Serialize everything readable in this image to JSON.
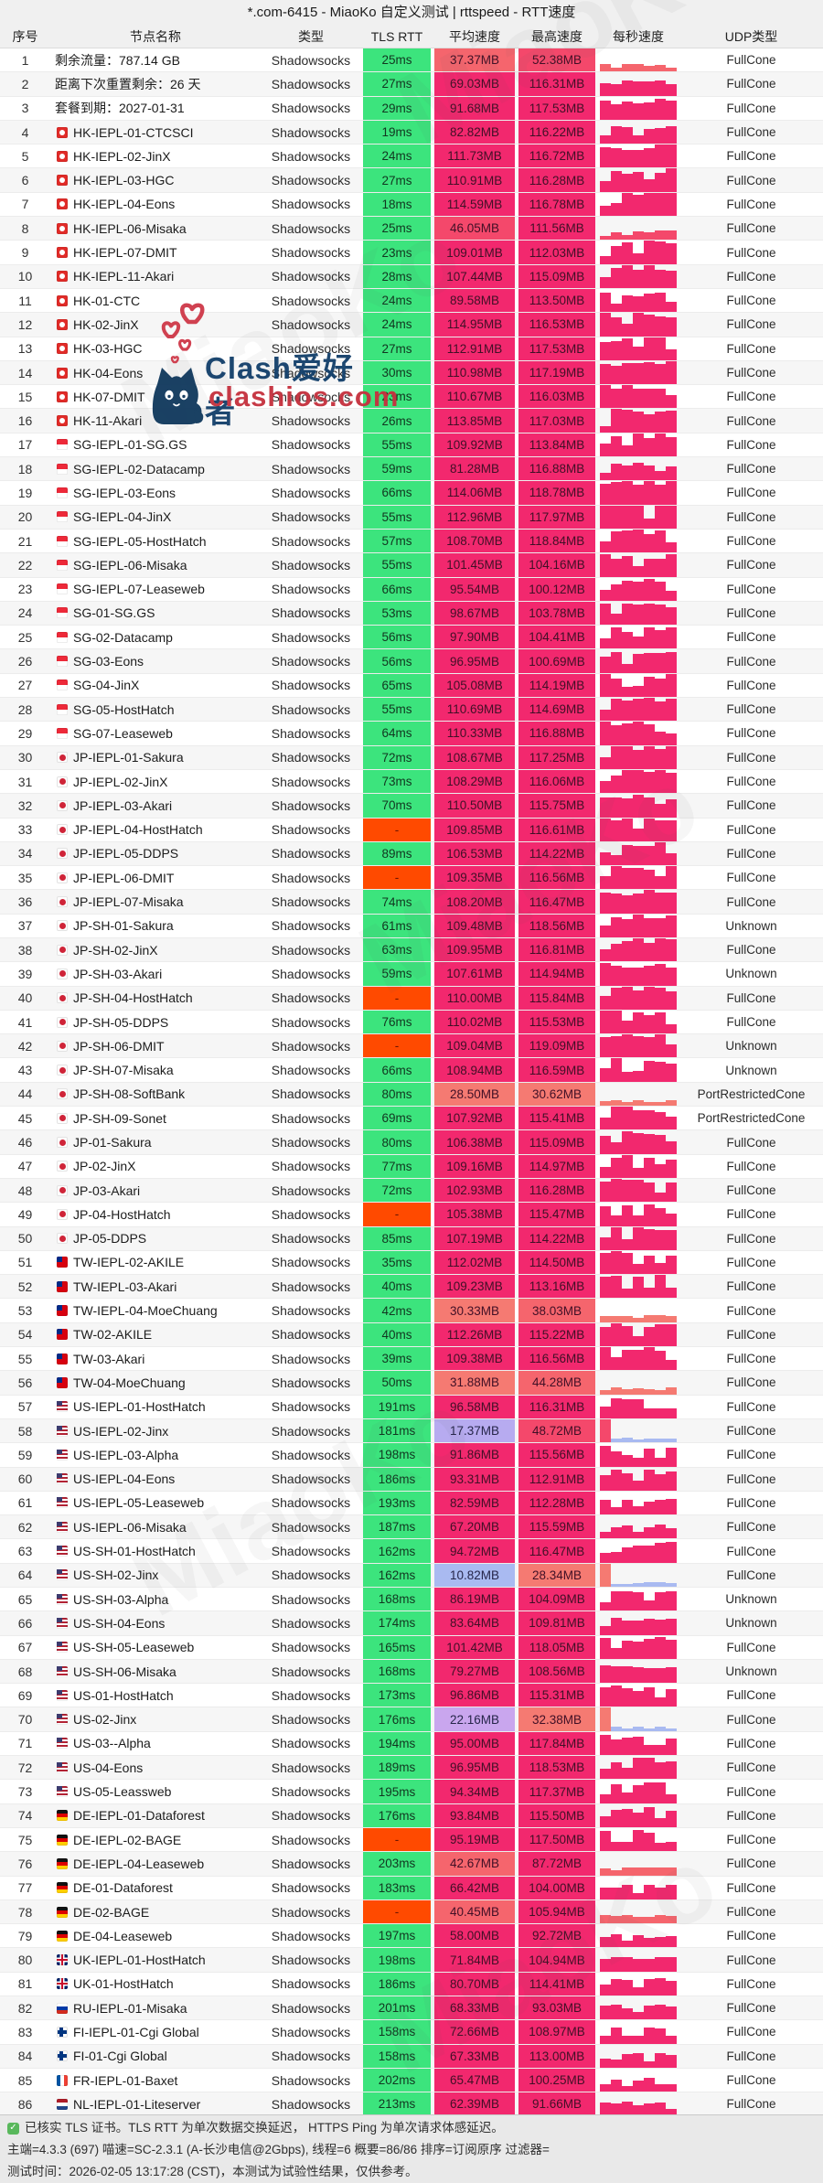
{
  "window": {
    "title": "*.com-6415 - MiaoKo 自定义测试 | rttspeed - RTT速度"
  },
  "table": {
    "columns": [
      "序号",
      "节点名称",
      "类型",
      "TLS RTT",
      "平均速度",
      "最高速度",
      "每秒速度",
      "UDP类型"
    ],
    "type_label": "Shadowsocks",
    "rows": [
      {
        "i": 1,
        "flag": "",
        "name": "剩余流量：787.14 GB",
        "rtt": "25ms",
        "avg": "37.37MB",
        "max": "52.38MB",
        "udp": "FullCone"
      },
      {
        "i": 2,
        "flag": "",
        "name": "距离下次重置剩余：26 天",
        "rtt": "27ms",
        "avg": "69.03MB",
        "max": "116.31MB",
        "udp": "FullCone"
      },
      {
        "i": 3,
        "flag": "",
        "name": "套餐到期：2027-01-31",
        "rtt": "29ms",
        "avg": "91.68MB",
        "max": "117.53MB",
        "udp": "FullCone"
      },
      {
        "i": 4,
        "flag": "hk",
        "name": "HK-IEPL-01-CTCSCI",
        "rtt": "19ms",
        "avg": "82.82MB",
        "max": "116.22MB",
        "udp": "FullCone"
      },
      {
        "i": 5,
        "flag": "hk",
        "name": "HK-IEPL-02-JinX",
        "rtt": "24ms",
        "avg": "111.73MB",
        "max": "116.72MB",
        "udp": "FullCone"
      },
      {
        "i": 6,
        "flag": "hk",
        "name": "HK-IEPL-03-HGC",
        "rtt": "27ms",
        "avg": "110.91MB",
        "max": "116.28MB",
        "udp": "FullCone"
      },
      {
        "i": 7,
        "flag": "hk",
        "name": "HK-IEPL-04-Eons",
        "rtt": "18ms",
        "avg": "114.59MB",
        "max": "116.78MB",
        "udp": "FullCone"
      },
      {
        "i": 8,
        "flag": "hk",
        "name": "HK-IEPL-06-Misaka",
        "rtt": "25ms",
        "avg": "46.05MB",
        "max": "111.56MB",
        "udp": "FullCone"
      },
      {
        "i": 9,
        "flag": "hk",
        "name": "HK-IEPL-07-DMIT",
        "rtt": "23ms",
        "avg": "109.01MB",
        "max": "112.03MB",
        "udp": "FullCone"
      },
      {
        "i": 10,
        "flag": "hk",
        "name": "HK-IEPL-11-Akari",
        "rtt": "28ms",
        "avg": "107.44MB",
        "max": "115.09MB",
        "udp": "FullCone"
      },
      {
        "i": 11,
        "flag": "hk",
        "name": "HK-01-CTC",
        "rtt": "24ms",
        "avg": "89.58MB",
        "max": "113.50MB",
        "udp": "FullCone"
      },
      {
        "i": 12,
        "flag": "hk",
        "name": "HK-02-JinX",
        "rtt": "24ms",
        "avg": "114.95MB",
        "max": "116.53MB",
        "udp": "FullCone"
      },
      {
        "i": 13,
        "flag": "hk",
        "name": "HK-03-HGC",
        "rtt": "27ms",
        "avg": "112.91MB",
        "max": "117.53MB",
        "udp": "FullCone"
      },
      {
        "i": 14,
        "flag": "hk",
        "name": "HK-04-Eons",
        "rtt": "30ms",
        "avg": "110.98MB",
        "max": "117.19MB",
        "udp": "FullCone"
      },
      {
        "i": 15,
        "flag": "hk",
        "name": "HK-07-DMIT",
        "rtt": "23ms",
        "avg": "110.67MB",
        "max": "116.03MB",
        "udp": "FullCone"
      },
      {
        "i": 16,
        "flag": "hk",
        "name": "HK-11-Akari",
        "rtt": "26ms",
        "avg": "113.85MB",
        "max": "117.03MB",
        "udp": "FullCone"
      },
      {
        "i": 17,
        "flag": "sg",
        "name": "SG-IEPL-01-SG.GS",
        "rtt": "55ms",
        "avg": "109.92MB",
        "max": "113.84MB",
        "udp": "FullCone"
      },
      {
        "i": 18,
        "flag": "sg",
        "name": "SG-IEPL-02-Datacamp",
        "rtt": "59ms",
        "avg": "81.28MB",
        "max": "116.88MB",
        "udp": "FullCone"
      },
      {
        "i": 19,
        "flag": "sg",
        "name": "SG-IEPL-03-Eons",
        "rtt": "66ms",
        "avg": "114.06MB",
        "max": "118.78MB",
        "udp": "FullCone"
      },
      {
        "i": 20,
        "flag": "sg",
        "name": "SG-IEPL-04-JinX",
        "rtt": "55ms",
        "avg": "112.96MB",
        "max": "117.97MB",
        "udp": "FullCone"
      },
      {
        "i": 21,
        "flag": "sg",
        "name": "SG-IEPL-05-HostHatch",
        "rtt": "57ms",
        "avg": "108.70MB",
        "max": "118.84MB",
        "udp": "FullCone"
      },
      {
        "i": 22,
        "flag": "sg",
        "name": "SG-IEPL-06-Misaka",
        "rtt": "55ms",
        "avg": "101.45MB",
        "max": "104.16MB",
        "udp": "FullCone"
      },
      {
        "i": 23,
        "flag": "sg",
        "name": "SG-IEPL-07-Leaseweb",
        "rtt": "66ms",
        "avg": "95.54MB",
        "max": "100.12MB",
        "udp": "FullCone"
      },
      {
        "i": 24,
        "flag": "sg",
        "name": "SG-01-SG.GS",
        "rtt": "53ms",
        "avg": "98.67MB",
        "max": "103.78MB",
        "udp": "FullCone"
      },
      {
        "i": 25,
        "flag": "sg",
        "name": "SG-02-Datacamp",
        "rtt": "56ms",
        "avg": "97.90MB",
        "max": "104.41MB",
        "udp": "FullCone"
      },
      {
        "i": 26,
        "flag": "sg",
        "name": "SG-03-Eons",
        "rtt": "56ms",
        "avg": "96.95MB",
        "max": "100.69MB",
        "udp": "FullCone"
      },
      {
        "i": 27,
        "flag": "sg",
        "name": "SG-04-JinX",
        "rtt": "65ms",
        "avg": "105.08MB",
        "max": "114.19MB",
        "udp": "FullCone"
      },
      {
        "i": 28,
        "flag": "sg",
        "name": "SG-05-HostHatch",
        "rtt": "55ms",
        "avg": "110.69MB",
        "max": "114.69MB",
        "udp": "FullCone"
      },
      {
        "i": 29,
        "flag": "sg",
        "name": "SG-07-Leaseweb",
        "rtt": "64ms",
        "avg": "110.33MB",
        "max": "116.88MB",
        "udp": "FullCone"
      },
      {
        "i": 30,
        "flag": "jp",
        "name": "JP-IEPL-01-Sakura",
        "rtt": "72ms",
        "avg": "108.67MB",
        "max": "117.25MB",
        "udp": "FullCone"
      },
      {
        "i": 31,
        "flag": "jp",
        "name": "JP-IEPL-02-JinX",
        "rtt": "73ms",
        "avg": "108.29MB",
        "max": "116.06MB",
        "udp": "FullCone"
      },
      {
        "i": 32,
        "flag": "jp",
        "name": "JP-IEPL-03-Akari",
        "rtt": "70ms",
        "avg": "110.50MB",
        "max": "115.75MB",
        "udp": "FullCone"
      },
      {
        "i": 33,
        "flag": "jp",
        "name": "JP-IEPL-04-HostHatch",
        "rtt": "-",
        "avg": "109.85MB",
        "max": "116.61MB",
        "udp": "FullCone"
      },
      {
        "i": 34,
        "flag": "jp",
        "name": "JP-IEPL-05-DDPS",
        "rtt": "89ms",
        "avg": "106.53MB",
        "max": "114.22MB",
        "udp": "FullCone"
      },
      {
        "i": 35,
        "flag": "jp",
        "name": "JP-IEPL-06-DMIT",
        "rtt": "-",
        "avg": "109.35MB",
        "max": "116.56MB",
        "udp": "FullCone"
      },
      {
        "i": 36,
        "flag": "jp",
        "name": "JP-IEPL-07-Misaka",
        "rtt": "74ms",
        "avg": "108.20MB",
        "max": "116.47MB",
        "udp": "FullCone"
      },
      {
        "i": 37,
        "flag": "jp",
        "name": "JP-SH-01-Sakura",
        "rtt": "61ms",
        "avg": "109.48MB",
        "max": "118.56MB",
        "udp": "Unknown"
      },
      {
        "i": 38,
        "flag": "jp",
        "name": "JP-SH-02-JinX",
        "rtt": "63ms",
        "avg": "109.95MB",
        "max": "116.81MB",
        "udp": "FullCone"
      },
      {
        "i": 39,
        "flag": "jp",
        "name": "JP-SH-03-Akari",
        "rtt": "59ms",
        "avg": "107.61MB",
        "max": "114.94MB",
        "udp": "Unknown"
      },
      {
        "i": 40,
        "flag": "jp",
        "name": "JP-SH-04-HostHatch",
        "rtt": "-",
        "avg": "110.00MB",
        "max": "115.84MB",
        "udp": "FullCone"
      },
      {
        "i": 41,
        "flag": "jp",
        "name": "JP-SH-05-DDPS",
        "rtt": "76ms",
        "avg": "110.02MB",
        "max": "115.53MB",
        "udp": "FullCone"
      },
      {
        "i": 42,
        "flag": "jp",
        "name": "JP-SH-06-DMIT",
        "rtt": "-",
        "avg": "109.04MB",
        "max": "119.09MB",
        "udp": "Unknown"
      },
      {
        "i": 43,
        "flag": "jp",
        "name": "JP-SH-07-Misaka",
        "rtt": "66ms",
        "avg": "108.94MB",
        "max": "116.59MB",
        "udp": "Unknown"
      },
      {
        "i": 44,
        "flag": "jp",
        "name": "JP-SH-08-SoftBank",
        "rtt": "80ms",
        "avg": "28.50MB",
        "max": "30.62MB",
        "udp": "PortRestrictedCone"
      },
      {
        "i": 45,
        "flag": "jp",
        "name": "JP-SH-09-Sonet",
        "rtt": "69ms",
        "avg": "107.92MB",
        "max": "115.41MB",
        "udp": "PortRestrictedCone"
      },
      {
        "i": 46,
        "flag": "jp",
        "name": "JP-01-Sakura",
        "rtt": "80ms",
        "avg": "106.38MB",
        "max": "115.09MB",
        "udp": "FullCone"
      },
      {
        "i": 47,
        "flag": "jp",
        "name": "JP-02-JinX",
        "rtt": "77ms",
        "avg": "109.16MB",
        "max": "114.97MB",
        "udp": "FullCone"
      },
      {
        "i": 48,
        "flag": "jp",
        "name": "JP-03-Akari",
        "rtt": "72ms",
        "avg": "102.93MB",
        "max": "116.28MB",
        "udp": "FullCone"
      },
      {
        "i": 49,
        "flag": "jp",
        "name": "JP-04-HostHatch",
        "rtt": "-",
        "avg": "105.38MB",
        "max": "115.47MB",
        "udp": "FullCone"
      },
      {
        "i": 50,
        "flag": "jp",
        "name": "JP-05-DDPS",
        "rtt": "85ms",
        "avg": "107.19MB",
        "max": "114.22MB",
        "udp": "FullCone"
      },
      {
        "i": 51,
        "flag": "tw",
        "name": "TW-IEPL-02-AKILE",
        "rtt": "35ms",
        "avg": "112.02MB",
        "max": "114.50MB",
        "udp": "FullCone"
      },
      {
        "i": 52,
        "flag": "tw",
        "name": "TW-IEPL-03-Akari",
        "rtt": "40ms",
        "avg": "109.23MB",
        "max": "113.16MB",
        "udp": "FullCone"
      },
      {
        "i": 53,
        "flag": "tw",
        "name": "TW-IEPL-04-MoeChuang",
        "rtt": "42ms",
        "avg": "30.33MB",
        "max": "38.03MB",
        "udp": "FullCone"
      },
      {
        "i": 54,
        "flag": "tw",
        "name": "TW-02-AKILE",
        "rtt": "40ms",
        "avg": "112.26MB",
        "max": "115.22MB",
        "udp": "FullCone"
      },
      {
        "i": 55,
        "flag": "tw",
        "name": "TW-03-Akari",
        "rtt": "39ms",
        "avg": "109.38MB",
        "max": "116.56MB",
        "udp": "FullCone"
      },
      {
        "i": 56,
        "flag": "tw",
        "name": "TW-04-MoeChuang",
        "rtt": "50ms",
        "avg": "31.88MB",
        "max": "44.28MB",
        "udp": "FullCone"
      },
      {
        "i": 57,
        "flag": "us",
        "name": "US-IEPL-01-HostHatch",
        "rtt": "191ms",
        "avg": "96.58MB",
        "max": "116.31MB",
        "udp": "FullCone"
      },
      {
        "i": 58,
        "flag": "us",
        "name": "US-IEPL-02-Jinx",
        "rtt": "181ms",
        "avg": "17.37MB",
        "max": "48.72MB",
        "udp": "FullCone"
      },
      {
        "i": 59,
        "flag": "us",
        "name": "US-IEPL-03-Alpha",
        "rtt": "198ms",
        "avg": "91.86MB",
        "max": "115.56MB",
        "udp": "FullCone"
      },
      {
        "i": 60,
        "flag": "us",
        "name": "US-IEPL-04-Eons",
        "rtt": "186ms",
        "avg": "93.31MB",
        "max": "112.91MB",
        "udp": "FullCone"
      },
      {
        "i": 61,
        "flag": "us",
        "name": "US-IEPL-05-Leaseweb",
        "rtt": "193ms",
        "avg": "82.59MB",
        "max": "112.28MB",
        "udp": "FullCone"
      },
      {
        "i": 62,
        "flag": "us",
        "name": "US-IEPL-06-Misaka",
        "rtt": "187ms",
        "avg": "67.20MB",
        "max": "115.59MB",
        "udp": "FullCone"
      },
      {
        "i": 63,
        "flag": "us",
        "name": "US-SH-01-HostHatch",
        "rtt": "162ms",
        "avg": "94.72MB",
        "max": "116.47MB",
        "udp": "FullCone"
      },
      {
        "i": 64,
        "flag": "us",
        "name": "US-SH-02-Jinx",
        "rtt": "162ms",
        "avg": "10.82MB",
        "max": "28.34MB",
        "udp": "FullCone"
      },
      {
        "i": 65,
        "flag": "us",
        "name": "US-SH-03-Alpha",
        "rtt": "168ms",
        "avg": "86.19MB",
        "max": "104.09MB",
        "udp": "Unknown"
      },
      {
        "i": 66,
        "flag": "us",
        "name": "US-SH-04-Eons",
        "rtt": "174ms",
        "avg": "83.64MB",
        "max": "109.81MB",
        "udp": "Unknown"
      },
      {
        "i": 67,
        "flag": "us",
        "name": "US-SH-05-Leaseweb",
        "rtt": "165ms",
        "avg": "101.42MB",
        "max": "118.05MB",
        "udp": "FullCone"
      },
      {
        "i": 68,
        "flag": "us",
        "name": "US-SH-06-Misaka",
        "rtt": "168ms",
        "avg": "79.27MB",
        "max": "108.56MB",
        "udp": "Unknown"
      },
      {
        "i": 69,
        "flag": "us",
        "name": "US-01-HostHatch",
        "rtt": "173ms",
        "avg": "96.86MB",
        "max": "115.31MB",
        "udp": "FullCone"
      },
      {
        "i": 70,
        "flag": "us",
        "name": "US-02-Jinx",
        "rtt": "176ms",
        "avg": "22.16MB",
        "max": "32.38MB",
        "udp": "FullCone"
      },
      {
        "i": 71,
        "flag": "us",
        "name": "US-03--Alpha",
        "rtt": "194ms",
        "avg": "95.00MB",
        "max": "117.84MB",
        "udp": "FullCone"
      },
      {
        "i": 72,
        "flag": "us",
        "name": "US-04-Eons",
        "rtt": "189ms",
        "avg": "96.95MB",
        "max": "118.53MB",
        "udp": "FullCone"
      },
      {
        "i": 73,
        "flag": "us",
        "name": "US-05-Leassweb",
        "rtt": "195ms",
        "avg": "94.34MB",
        "max": "117.37MB",
        "udp": "FullCone"
      },
      {
        "i": 74,
        "flag": "de",
        "name": "DE-IEPL-01-Dataforest",
        "rtt": "176ms",
        "avg": "93.84MB",
        "max": "115.50MB",
        "udp": "FullCone"
      },
      {
        "i": 75,
        "flag": "de",
        "name": "DE-IEPL-02-BAGE",
        "rtt": "-",
        "avg": "95.19MB",
        "max": "117.50MB",
        "udp": "FullCone"
      },
      {
        "i": 76,
        "flag": "de",
        "name": "DE-IEPL-04-Leaseweb",
        "rtt": "203ms",
        "avg": "42.67MB",
        "max": "87.72MB",
        "udp": "FullCone"
      },
      {
        "i": 77,
        "flag": "de",
        "name": "DE-01-Dataforest",
        "rtt": "183ms",
        "avg": "66.42MB",
        "max": "104.00MB",
        "udp": "FullCone"
      },
      {
        "i": 78,
        "flag": "de",
        "name": "DE-02-BAGE",
        "rtt": "-",
        "avg": "40.45MB",
        "max": "105.94MB",
        "udp": "FullCone"
      },
      {
        "i": 79,
        "flag": "de",
        "name": "DE-04-Leaseweb",
        "rtt": "197ms",
        "avg": "58.00MB",
        "max": "92.72MB",
        "udp": "FullCone"
      },
      {
        "i": 80,
        "flag": "uk",
        "name": "UK-IEPL-01-HostHatch",
        "rtt": "198ms",
        "avg": "71.84MB",
        "max": "104.94MB",
        "udp": "FullCone"
      },
      {
        "i": 81,
        "flag": "uk",
        "name": "UK-01-HostHatch",
        "rtt": "186ms",
        "avg": "80.70MB",
        "max": "114.41MB",
        "udp": "FullCone"
      },
      {
        "i": 82,
        "flag": "ru",
        "name": "RU-IEPL-01-Misaka",
        "rtt": "201ms",
        "avg": "68.33MB",
        "max": "93.03MB",
        "udp": "FullCone"
      },
      {
        "i": 83,
        "flag": "fi",
        "name": "FI-IEPL-01-Cgi Global",
        "rtt": "158ms",
        "avg": "72.66MB",
        "max": "108.97MB",
        "udp": "FullCone"
      },
      {
        "i": 84,
        "flag": "fi",
        "name": "FI-01-Cgi Global",
        "rtt": "158ms",
        "avg": "67.33MB",
        "max": "113.00MB",
        "udp": "FullCone"
      },
      {
        "i": 85,
        "flag": "fr",
        "name": "FR-IEPL-01-Baxet",
        "rtt": "202ms",
        "avg": "65.47MB",
        "max": "100.25MB",
        "udp": "FullCone"
      },
      {
        "i": 86,
        "flag": "nl",
        "name": "NL-IEPL-01-Liteserver",
        "rtt": "213ms",
        "avg": "62.39MB",
        "max": "91.66MB",
        "udp": "FullCone"
      }
    ]
  },
  "footer": {
    "line1": "已核实 TLS 证书。TLS RTT 为单次数据交换延迟， HTTPS Ping 为单次请求体感延迟。",
    "line2": "主端=4.3.3 (697) 喵速=SC-2.3.1 (A-长沙电信@2Gbps), 线程=6 概要=86/86 排序=订阅原序 过滤器=",
    "line3": "测试时间：2026-02-05 13:17:28 (CST)，本测试为试验性结果，仅供参考。"
  },
  "watermark": {
    "brand": "Clash爱好者",
    "site": "clashios.com",
    "diagonal": "MiaoKo"
  },
  "colors": {
    "rtt_ok_bg": "#3ce47d",
    "rtt_timeout_bg": "#ff4a00",
    "speed_deep_pink": "#f2286e",
    "speed_red": "#f4486b",
    "speed_salmon": "#f5656d",
    "speed_salmon_light": "#f57a72",
    "speed_purple": "#c9a6ee",
    "speed_periwinkle": "#b7abf0",
    "speed_blue": "#a9baf1",
    "speed_text_dark": "#401026",
    "speed_text_blue": "#26264a"
  }
}
